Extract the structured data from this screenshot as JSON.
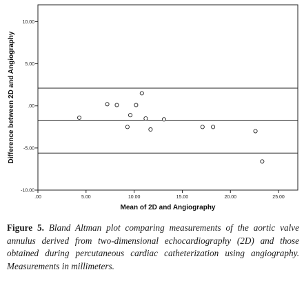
{
  "caption": {
    "label": "Figure 5.",
    "text": "Bland Altman plot comparing measurements of the aortic valve annulus derived from two-dimensional echocardiography (2D) and those obtained during percutaneous cardiac catheterization using angiography. Measurements in millimeters."
  },
  "chart_data": {
    "type": "scatter",
    "title": "",
    "xlabel": "Mean of 2D and Angiography",
    "ylabel": "Difference between 2D and Angiography",
    "xlim": [
      0,
      27
    ],
    "ylim": [
      -10,
      12
    ],
    "x_ticks": [
      0,
      5,
      10,
      15,
      20,
      25
    ],
    "x_tick_labels": [
      ".00",
      "5.00",
      "10.00",
      "15.00",
      "20.00",
      "25.00"
    ],
    "y_ticks": [
      -10,
      -5,
      0,
      5,
      10
    ],
    "y_tick_labels": [
      "-10.00",
      "-5.00",
      ".00",
      "5.00",
      "10.00"
    ],
    "grid": false,
    "reference_lines": [
      2.1,
      -1.7,
      -5.6
    ],
    "points": [
      {
        "x": 4.3,
        "y": -1.4
      },
      {
        "x": 7.2,
        "y": 0.2
      },
      {
        "x": 8.2,
        "y": 0.1
      },
      {
        "x": 9.3,
        "y": -2.5
      },
      {
        "x": 9.6,
        "y": -1.1
      },
      {
        "x": 10.2,
        "y": 0.1
      },
      {
        "x": 10.8,
        "y": 1.5
      },
      {
        "x": 11.2,
        "y": -1.5
      },
      {
        "x": 11.7,
        "y": -2.8
      },
      {
        "x": 13.1,
        "y": -1.6
      },
      {
        "x": 17.1,
        "y": -2.5
      },
      {
        "x": 18.2,
        "y": -2.5
      },
      {
        "x": 22.6,
        "y": -3.0
      },
      {
        "x": 23.3,
        "y": -6.6
      }
    ]
  }
}
